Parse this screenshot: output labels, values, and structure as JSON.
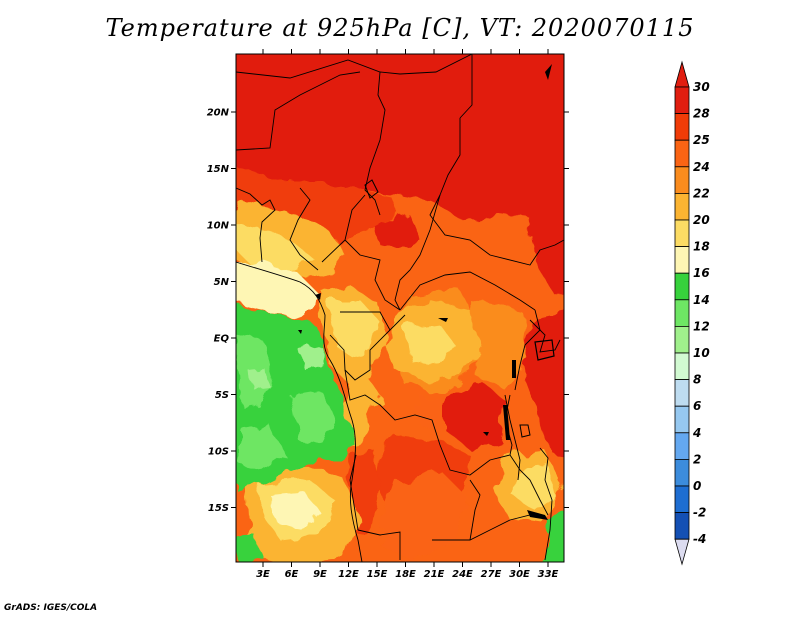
{
  "title": "Temperature at 925hPa [C], VT: 2020070115",
  "credit": "GrADS: IGES/COLA",
  "map": {
    "lat_ticks": [
      {
        "lat": 20,
        "label": "20N"
      },
      {
        "lat": 15,
        "label": "15N"
      },
      {
        "lat": 10,
        "label": "10N"
      },
      {
        "lat": 5,
        "label": "5N"
      },
      {
        "lat": 0,
        "label": "EQ"
      },
      {
        "lat": -5,
        "label": "5S"
      },
      {
        "lat": -10,
        "label": "10S"
      },
      {
        "lat": -15,
        "label": "15S"
      }
    ],
    "lon_ticks": [
      {
        "lon": 3,
        "label": "3E"
      },
      {
        "lon": 6,
        "label": "6E"
      },
      {
        "lon": 9,
        "label": "9E"
      },
      {
        "lon": 12,
        "label": "12E"
      },
      {
        "lon": 15,
        "label": "15E"
      },
      {
        "lon": 18,
        "label": "18E"
      },
      {
        "lon": 21,
        "label": "21E"
      },
      {
        "lon": 24,
        "label": "24E"
      },
      {
        "lon": 27,
        "label": "27E"
      },
      {
        "lon": 30,
        "label": "30E"
      },
      {
        "lon": 33,
        "label": "33E"
      }
    ]
  },
  "colorbar": {
    "labels": [
      "30",
      "28",
      "25",
      "24",
      "22",
      "20",
      "18",
      "16",
      "14",
      "12",
      "10",
      "8",
      "6",
      "4",
      "2",
      "0",
      "-2",
      "-4"
    ],
    "colors": [
      "#e11e10",
      "#f03c08",
      "#fa6414",
      "#fa8c1e",
      "#fbb432",
      "#fcdc64",
      "#fef6b4",
      "#37d23c",
      "#6ee664",
      "#a0f08c",
      "#d2fad2",
      "#bedcf0",
      "#96c8f0",
      "#64a8f0",
      "#3c8cdc",
      "#1e6ed2",
      "#1450b4",
      "#0a148c"
    ],
    "top_arrow_color": "#e11e10",
    "bottom_arrow_color": "#dcdcf0"
  }
}
